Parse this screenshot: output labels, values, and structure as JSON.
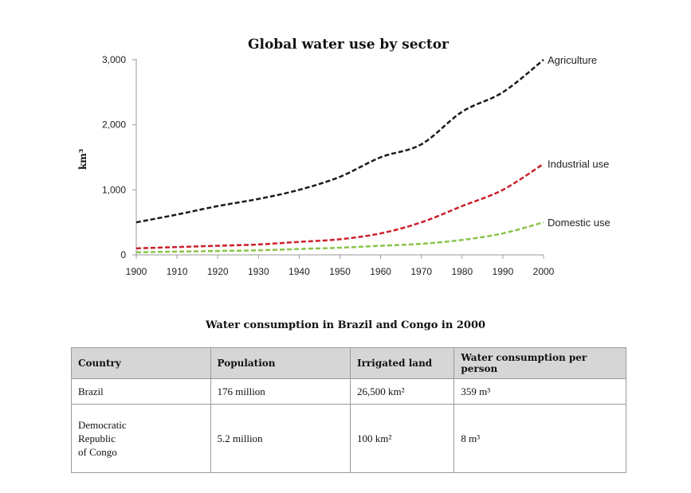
{
  "chart_data": {
    "type": "line",
    "title": "Global water use by sector",
    "xlabel": "",
    "ylabel": "km³",
    "x": [
      1900,
      1910,
      1920,
      1930,
      1940,
      1950,
      1960,
      1970,
      1980,
      1990,
      2000
    ],
    "xticks": [
      "1900",
      "1910",
      "1920",
      "1930",
      "1940",
      "1950",
      "1960",
      "1970",
      "1980",
      "1990",
      "2000"
    ],
    "yticks": [
      "0",
      "1,000",
      "2,000",
      "3,000"
    ],
    "ylim": [
      0,
      3000
    ],
    "xlim": [
      1900,
      2000
    ],
    "grid": false,
    "series": [
      {
        "name": "Agriculture",
        "color": "#1a1a1a",
        "values": [
          500,
          620,
          750,
          860,
          1000,
          1200,
          1500,
          1700,
          2200,
          2500,
          3000
        ]
      },
      {
        "name": "Industrial use",
        "color": "#cc1f2b",
        "values": [
          100,
          120,
          140,
          160,
          200,
          240,
          330,
          500,
          750,
          1000,
          1400
        ]
      },
      {
        "name": "Domestic use",
        "color": "#8bc34a",
        "values": [
          40,
          50,
          60,
          70,
          90,
          110,
          140,
          170,
          230,
          330,
          500
        ]
      }
    ]
  },
  "table": {
    "title": "Water consumption in Brazil and Congo in 2000",
    "headers": [
      "Country",
      "Population",
      "Irrigated land",
      "Water consumption per person"
    ],
    "rows": [
      {
        "country": "Brazil",
        "population": "176 million",
        "irrigated_land": "26,500 km²",
        "consumption": "359 m³"
      },
      {
        "country_lines": [
          "Democratic",
          "Republic",
          "of Congo"
        ],
        "population": "5.2 million",
        "irrigated_land": "100 km²",
        "consumption": "8 m³"
      }
    ]
  }
}
